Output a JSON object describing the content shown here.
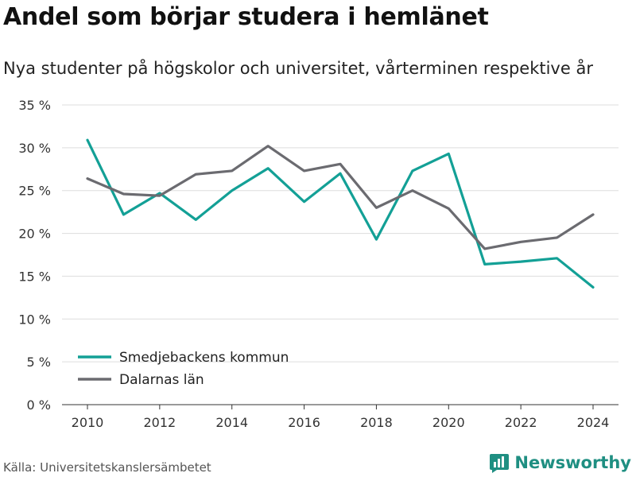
{
  "title": "Andel som börjar studera i hemlänet",
  "subtitle": "Nya studenter på högskolor och universitet, vårterminen respektive år",
  "source": "Källa: Universitetskanslersämbetet",
  "brand": {
    "name": "Newsworthy",
    "icon": "newsworthy-logo-icon",
    "color": "#1f8f82"
  },
  "colors": {
    "smedjebacken": "#13a096",
    "dalarna": "#6b6b70",
    "grid": "#dddddd"
  },
  "chart_data": {
    "type": "line",
    "x": [
      2010,
      2011,
      2012,
      2013,
      2014,
      2015,
      2016,
      2017,
      2018,
      2019,
      2020,
      2021,
      2022,
      2023,
      2024
    ],
    "x_ticks": [
      2010,
      2012,
      2014,
      2016,
      2018,
      2020,
      2022,
      2024
    ],
    "y_ticks": [
      0,
      5,
      10,
      15,
      20,
      25,
      30,
      35
    ],
    "y_tick_labels": [
      "0 %",
      "5 %",
      "10 %",
      "15 %",
      "20 %",
      "25 %",
      "30 %",
      "35 %"
    ],
    "xlim": [
      2010,
      2024
    ],
    "ylim": [
      0,
      35
    ],
    "grid": "horizontal",
    "legend_position": "bottom-left",
    "series": [
      {
        "name": "Smedjebackens kommun",
        "color": "#13a096",
        "values": [
          30.9,
          22.2,
          24.7,
          21.6,
          25.0,
          27.6,
          23.7,
          27.0,
          19.3,
          27.3,
          29.3,
          16.4,
          16.7,
          17.1,
          13.7
        ]
      },
      {
        "name": "Dalarnas län",
        "color": "#6b6b70",
        "values": [
          26.4,
          24.6,
          24.4,
          26.9,
          27.3,
          30.2,
          27.3,
          28.1,
          23.0,
          25.0,
          22.9,
          18.2,
          19.0,
          19.5,
          22.2
        ]
      }
    ]
  }
}
